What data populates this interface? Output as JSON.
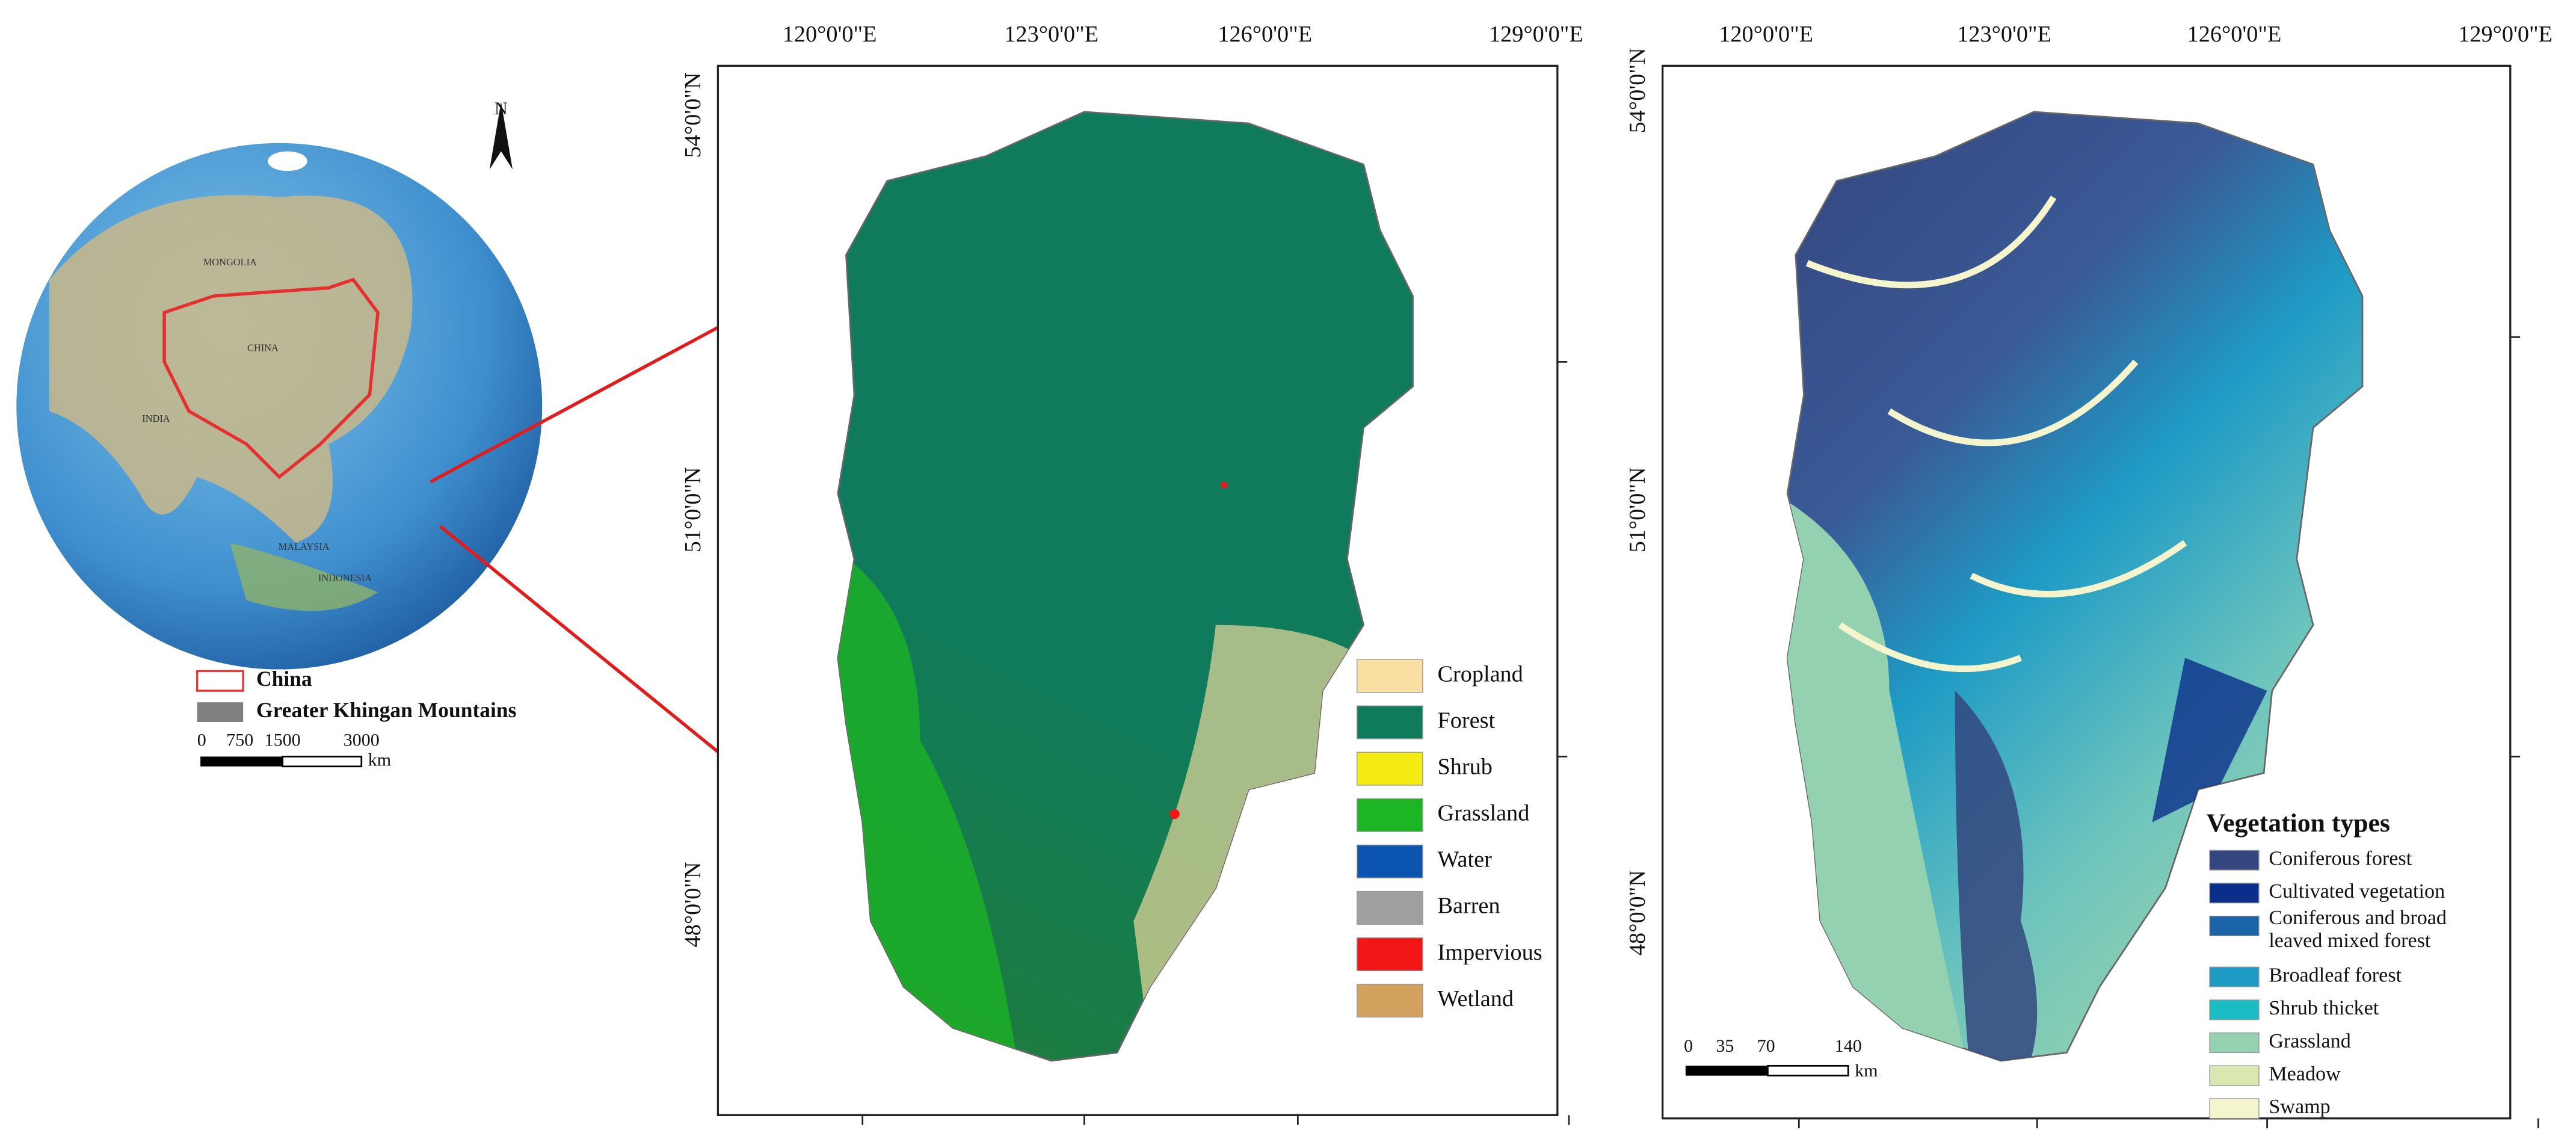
{
  "inset": {
    "north": "N",
    "places": [
      "MONGOLIA",
      "CHINA",
      "INDIA",
      "MALAYSIA",
      "INDONESIA"
    ],
    "legend": [
      {
        "label": "China",
        "color": "#e53030"
      },
      {
        "label": "Greater Khingan Mountains",
        "color": "#808080"
      }
    ],
    "scale": {
      "ticks": [
        "0",
        "750",
        "1500",
        "3000"
      ],
      "unit": "km"
    }
  },
  "map1": {
    "x_labels": [
      "120°0'0\"E",
      "123°0'0\"E",
      "126°0'0\"E",
      "129°0'0\"E"
    ],
    "y_labels": [
      "54°0'0\"N",
      "51°0'0\"N",
      "48°0'0\"N"
    ],
    "legend": [
      {
        "label": "Cropland",
        "color": "#f9e0a2"
      },
      {
        "label": "Forest",
        "color": "#0f7b5c"
      },
      {
        "label": "Shrub",
        "color": "#f3eb12"
      },
      {
        "label": "Grassland",
        "color": "#1cb523"
      },
      {
        "label": "Water",
        "color": "#0b55b0"
      },
      {
        "label": "Barren",
        "color": "#a0a0a0"
      },
      {
        "label": "Impervious",
        "color": "#f21616"
      },
      {
        "label": "Wetland",
        "color": "#d1a15d"
      }
    ]
  },
  "map2": {
    "x_labels": [
      "120°0'0\"E",
      "123°0'0\"E",
      "126°0'0\"E",
      "129°0'0\"E"
    ],
    "y_labels": [
      "54°0'0\"N",
      "51°0'0\"N",
      "48°0'0\"N"
    ],
    "legend_title": "Vegetation types",
    "legend": [
      {
        "lines": [
          "Coniferous forest"
        ],
        "color": "#34467f"
      },
      {
        "lines": [
          "Cultivated vegetation"
        ],
        "color": "#0b2e8a"
      },
      {
        "lines": [
          "Coniferous and broad",
          "leaved mixed forest"
        ],
        "color": "#1b63a8"
      },
      {
        "lines": [
          "Broadleaf forest"
        ],
        "color": "#1e9bc5"
      },
      {
        "lines": [
          "Shrub thicket"
        ],
        "color": "#1cbcc4"
      },
      {
        "lines": [
          "Grassland"
        ],
        "color": "#93d1b0"
      },
      {
        "lines": [
          "Meadow"
        ],
        "color": "#d8e8b0"
      },
      {
        "lines": [
          "Swamp"
        ],
        "color": "#f4f5cc"
      }
    ],
    "scale": {
      "ticks": [
        "0",
        "35",
        "70",
        "140"
      ],
      "unit": "km"
    }
  }
}
